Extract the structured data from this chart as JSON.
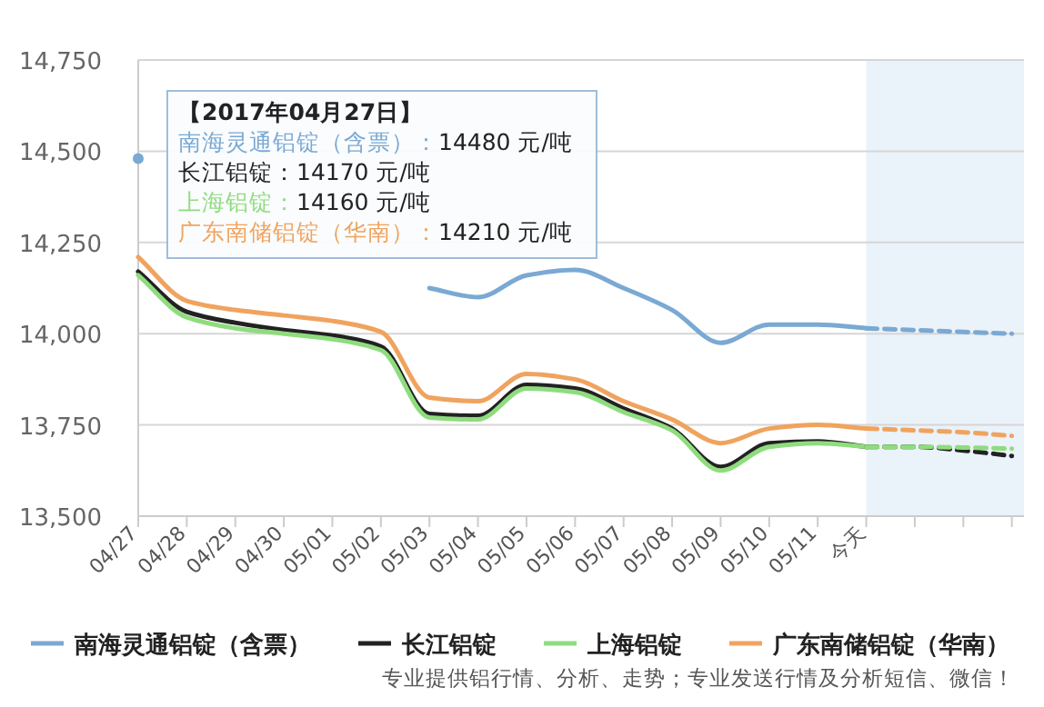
{
  "chart_data": {
    "type": "line",
    "x": [
      "2017-04-27",
      "2017-04-28",
      "2017-04-29",
      "2017-04-30",
      "2017-05-01",
      "2017-05-02",
      "2017-05-03",
      "2017-05-04",
      "2017-05-05",
      "2017-05-06",
      "2017-05-07",
      "2017-05-08",
      "2017-05-09",
      "2017-05-10",
      "2017-05-11",
      "2017-05-12",
      "2017-05-13",
      "2017-05-14",
      "2017-05-15"
    ],
    "xlim": [
      "2017-04-27",
      "2017-05-15T06:00"
    ],
    "xticks": [
      {
        "value": "2017-04-27",
        "label": "04/27"
      },
      {
        "value": "2017-04-28",
        "label": "04/28"
      },
      {
        "value": "2017-04-29",
        "label": "04/29"
      },
      {
        "value": "2017-04-30",
        "label": "04/30"
      },
      {
        "value": "2017-05-01",
        "label": "05/01"
      },
      {
        "value": "2017-05-02",
        "label": "05/02"
      },
      {
        "value": "2017-05-03",
        "label": "05/03"
      },
      {
        "value": "2017-05-04",
        "label": "05/04"
      },
      {
        "value": "2017-05-05",
        "label": "05/05"
      },
      {
        "value": "2017-05-06",
        "label": "05/06"
      },
      {
        "value": "2017-05-07",
        "label": "05/07"
      },
      {
        "value": "2017-05-08",
        "label": "05/08"
      },
      {
        "value": "2017-05-09",
        "label": "05/09"
      },
      {
        "value": "2017-05-10",
        "label": "05/10"
      },
      {
        "value": "2017-05-11",
        "label": "05/11"
      },
      {
        "value": "2017-05-12",
        "label": "今天"
      },
      {
        "value": "2017-05-13",
        "label": null
      },
      {
        "value": "2017-05-14",
        "label": null
      },
      {
        "value": "2017-05-15",
        "label": null
      }
    ],
    "series": [
      {
        "name": "南海灵通铝锭（含票）",
        "color": "#7aa9d3",
        "values": [
          14480,
          null,
          null,
          null,
          null,
          null,
          14125,
          14100,
          14160,
          14175,
          14125,
          14065,
          13975,
          14025,
          14025,
          14015,
          null,
          null,
          null
        ]
      },
      {
        "name": "长江铝锭",
        "color": "#222222",
        "values": [
          14170,
          14060,
          14030,
          14010,
          13995,
          13965,
          13780,
          13775,
          13860,
          13850,
          13795,
          13740,
          13635,
          13700,
          13705,
          13690,
          null,
          null,
          null
        ]
      },
      {
        "name": "上海铝锭",
        "color": "#8fdc7e",
        "values": [
          14160,
          14045,
          14015,
          14000,
          13985,
          13955,
          13770,
          13765,
          13850,
          13840,
          13785,
          13735,
          13625,
          13690,
          13700,
          13690,
          null,
          null,
          null
        ]
      },
      {
        "name": "广东南储铝锭（华南）",
        "color": "#f0a35e",
        "values": [
          14210,
          14090,
          14065,
          14050,
          14035,
          14005,
          13825,
          13815,
          13890,
          13875,
          13815,
          13765,
          13700,
          13740,
          13750,
          13740,
          null,
          null,
          null
        ]
      },
      {
        "color": "#7aa9d3",
        "line_style": "dashed",
        "values": [
          null,
          null,
          null,
          null,
          null,
          null,
          null,
          null,
          null,
          null,
          null,
          null,
          null,
          null,
          null,
          14015,
          14010,
          14005,
          14000
        ]
      },
      {
        "color": "#222222",
        "line_style": "dashed",
        "values": [
          null,
          null,
          null,
          null,
          null,
          null,
          null,
          null,
          null,
          null,
          null,
          null,
          null,
          null,
          null,
          13690,
          13690,
          13680,
          13665
        ]
      },
      {
        "color": "#8fdc7e",
        "line_style": "dashed",
        "values": [
          null,
          null,
          null,
          null,
          null,
          null,
          null,
          null,
          null,
          null,
          null,
          null,
          null,
          null,
          null,
          13690,
          13690,
          13688,
          13685
        ]
      },
      {
        "color": "#f0a35e",
        "line_style": "dashed",
        "values": [
          null,
          null,
          null,
          null,
          null,
          null,
          null,
          null,
          null,
          null,
          null,
          null,
          null,
          null,
          null,
          13740,
          13735,
          13730,
          13720
        ]
      }
    ],
    "ylim": [
      13500,
      14750
    ],
    "yticks": [
      {
        "value": 13500,
        "label": "13,500"
      },
      {
        "value": 13750,
        "label": "13,750"
      },
      {
        "value": 14000,
        "label": "14,000"
      },
      {
        "value": 14250,
        "label": "14,250"
      },
      {
        "value": 14500,
        "label": "14,500"
      },
      {
        "value": 14750,
        "label": "14,750"
      }
    ],
    "grid": "y",
    "legend": "bottom",
    "bands": [
      {
        "axis": "x",
        "from": "2017-05-12",
        "to": "2017-05-15T06:00",
        "color": "#eaf2fa"
      }
    ],
    "annotations": [
      "【2017年04月27日】",
      "南海灵通铝锭（含票）：14480 元/吨",
      "长江铝锭：14170 元/吨",
      "上海铝锭：14160 元/吨",
      "广东南储铝锭（华南）：14210 元/吨",
      "专业提供铝行情、分析、走势；专业发送行情及分析短信、微信！"
    ]
  }
}
